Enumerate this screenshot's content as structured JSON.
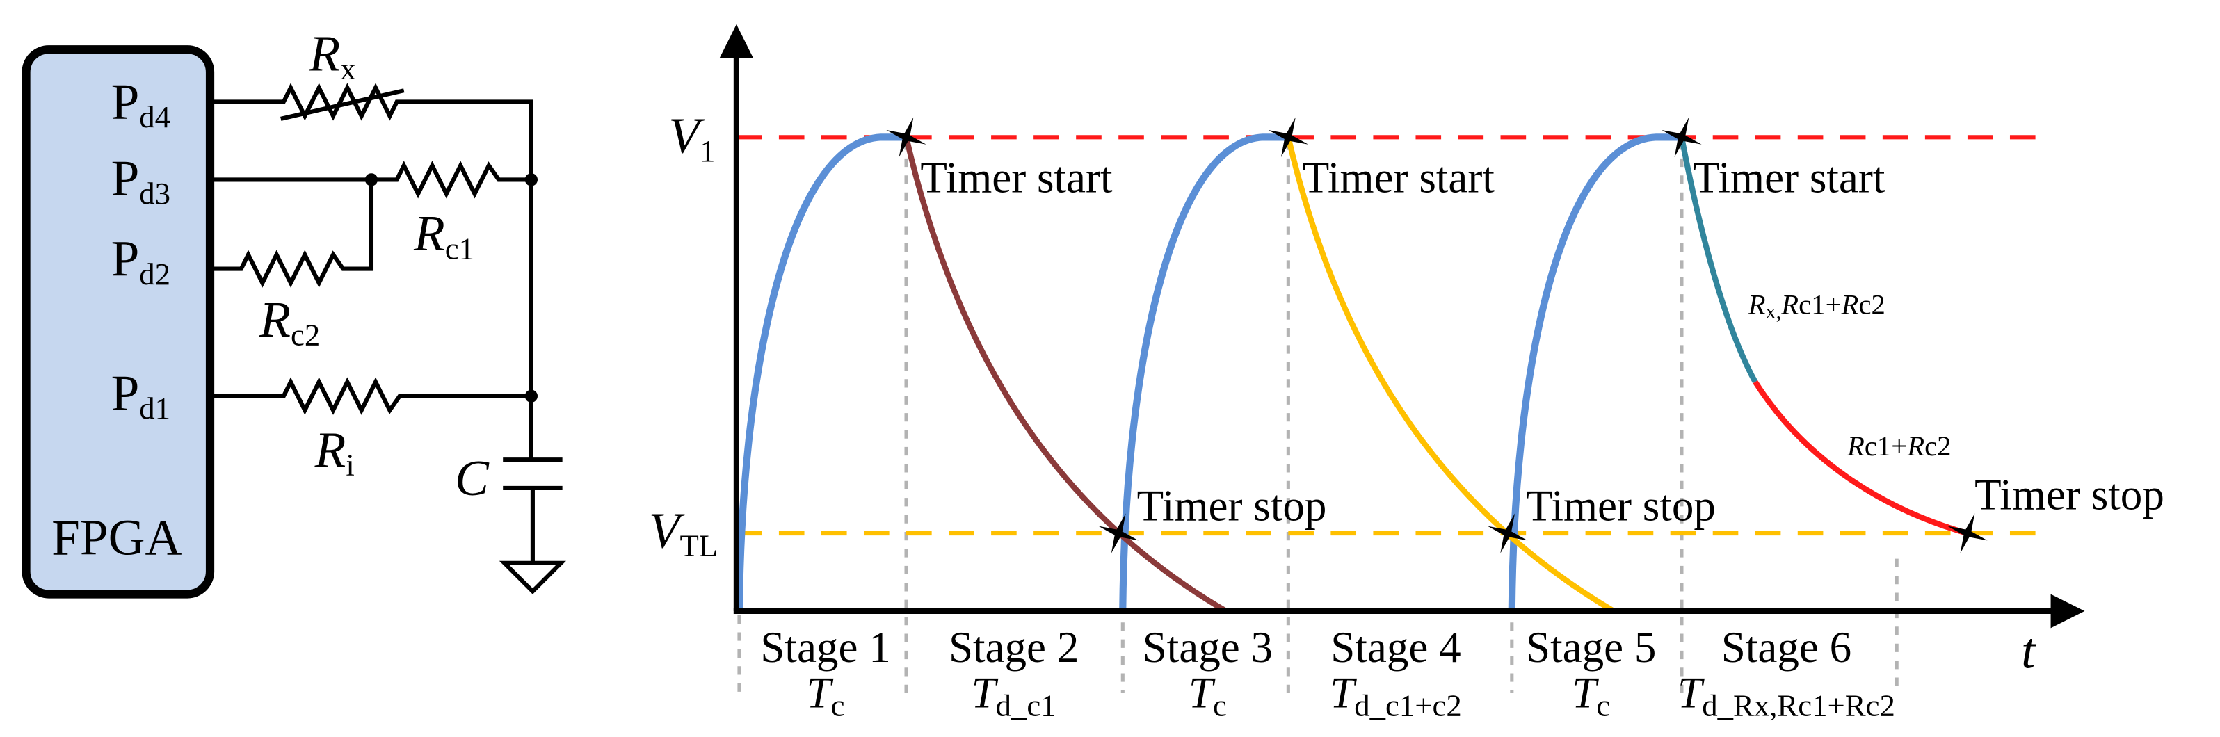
{
  "circuit": {
    "fpga": "FPGA",
    "pins": [
      {
        "main": "P",
        "sub": "d4"
      },
      {
        "main": "P",
        "sub": "d3"
      },
      {
        "main": "P",
        "sub": "d2"
      },
      {
        "main": "P",
        "sub": "d1"
      }
    ],
    "resistors": [
      {
        "main": "R",
        "sub": "x"
      },
      {
        "main": "R",
        "sub": "c1"
      },
      {
        "main": "R",
        "sub": "c2"
      },
      {
        "main": "R",
        "sub": "i"
      }
    ],
    "capacitor": "C"
  },
  "timing": {
    "x_axis_label": "t",
    "levels": [
      {
        "main": "V",
        "sub": "1"
      },
      {
        "main": "V",
        "sub": "TL"
      }
    ],
    "timer_start": [
      "Timer start",
      "Timer start",
      "Timer start"
    ],
    "timer_stop": [
      "Timer stop",
      "Timer stop",
      "Timer stop"
    ],
    "annotations": [
      [
        "R",
        "x,",
        "R",
        "c1+",
        "R",
        "c2"
      ],
      [
        "R",
        "c1+",
        "R",
        "c2"
      ]
    ],
    "stages": [
      {
        "name": "Stage 1",
        "main": "T",
        "sub": "c"
      },
      {
        "name": "Stage 2",
        "main": "T",
        "sub": "d_c1"
      },
      {
        "name": "Stage 3",
        "main": "T",
        "sub": "c"
      },
      {
        "name": "Stage 4",
        "main": "T",
        "sub": "d_c1+c2"
      },
      {
        "name": "Stage 5",
        "main": "T",
        "sub": "c"
      },
      {
        "name": "Stage 6",
        "main": "T",
        "sub": "d_Rx,Rc1+Rc2"
      }
    ]
  }
}
